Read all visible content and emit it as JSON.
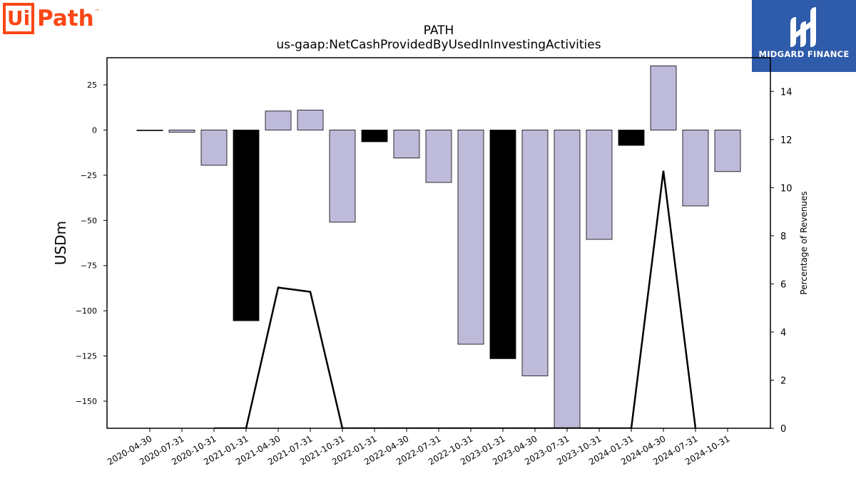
{
  "logos": {
    "left": {
      "ui": "Ui",
      "path": "Path",
      "tm": "™",
      "color": "#FA4616"
    },
    "right": {
      "name": "MIDGARD FINANCE",
      "background": "#2E5BAA",
      "icon": "midgard-m-icon"
    }
  },
  "chart_data": {
    "type": "bar",
    "title": "PATH",
    "subtitle": "us-gaap:NetCashProvidedByUsedInInvestingActivities",
    "ylabel": "USDm",
    "y2label": "Percentage of Revenues",
    "ylim": [
      -165,
      40
    ],
    "y2lim": [
      0,
      15.4
    ],
    "yticks": [
      25,
      0,
      -25,
      -50,
      -75,
      -100,
      -125,
      -150
    ],
    "y2ticks": [
      0,
      2,
      4,
      6,
      8,
      10,
      12,
      14
    ],
    "categories": [
      "2020-04-30",
      "2020-07-31",
      "2020-10-31",
      "2021-01-31",
      "2021-04-30",
      "2021-07-31",
      "2021-10-31",
      "2022-01-31",
      "2022-04-30",
      "2022-07-31",
      "2022-10-31",
      "2023-01-31",
      "2023-04-30",
      "2023-07-31",
      "2023-10-31",
      "2024-01-31",
      "2024-04-30",
      "2024-07-31",
      "2024-10-31"
    ],
    "series": [
      {
        "values": [
          -0.3,
          -1.2,
          -19.5,
          -105.5,
          10.5,
          11,
          -51,
          -6.5,
          -15.5,
          -29,
          -118.5,
          -126.5,
          -136,
          -170,
          -60.5,
          -8.5,
          35.5,
          -42,
          -23
        ]
      },
      {
        "values": [
          null,
          null,
          0,
          0,
          5.85,
          5.67,
          0,
          0,
          0,
          0,
          0,
          0,
          0,
          0,
          0,
          0,
          10.7,
          0,
          null
        ]
      }
    ],
    "highlighted_categories": [
      "2021-01-31",
      "2022-01-31",
      "2023-01-31",
      "2024-01-31"
    ],
    "colors": {
      "bar": "#BEBADA",
      "highlight": "#000000",
      "line": "#000000"
    }
  }
}
